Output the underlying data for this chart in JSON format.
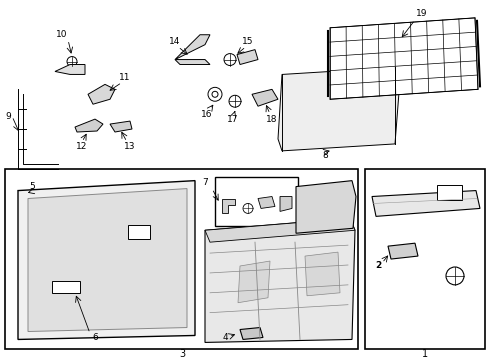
{
  "bg_color": "#ffffff",
  "line_color": "#000000",
  "gray_light": "#e8e8e8",
  "gray_mid": "#cccccc",
  "gray_dark": "#aaaaaa"
}
